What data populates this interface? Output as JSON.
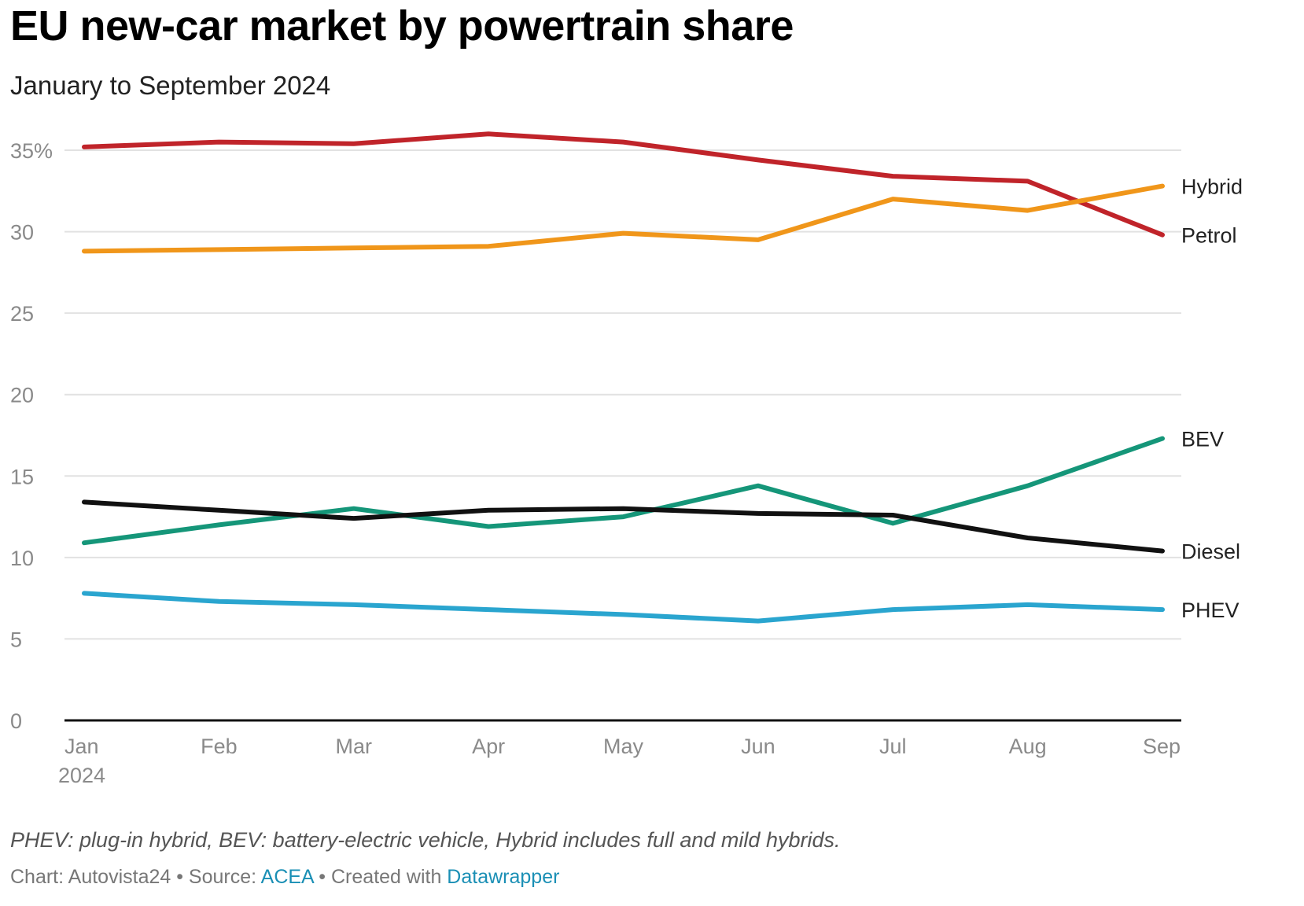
{
  "header": {
    "title": "EU new-car market by powertrain share",
    "subtitle": "January to September 2024"
  },
  "footer": {
    "notes": "PHEV: plug-in hybrid, BEV: battery-electric vehicle, Hybrid includes full and mild hybrids.",
    "credit_prefix": "Chart: Autovista24 • Source: ",
    "source_link": "ACEA",
    "created_prefix": " • Created with ",
    "tool_link": "Datawrapper"
  },
  "chart_data": {
    "type": "line",
    "title": "EU new-car market by powertrain share",
    "subtitle": "January to September 2024",
    "xlabel": "",
    "ylabel": "",
    "categories": [
      "Jan",
      "Feb",
      "Mar",
      "Apr",
      "May",
      "Jun",
      "Jul",
      "Aug",
      "Sep"
    ],
    "first_category_sublabel": "2024",
    "ylim": [
      0,
      35
    ],
    "y_ticks": [
      0,
      5,
      10,
      15,
      20,
      25,
      30,
      35
    ],
    "y_tick_labels": [
      "0",
      "5",
      "10",
      "15",
      "20",
      "25",
      "30",
      "35%"
    ],
    "grid": true,
    "legend": "direct labels at line ends (right)",
    "series": [
      {
        "name": "Petrol",
        "color": "#c0242a",
        "values": [
          35.2,
          35.5,
          35.4,
          36.0,
          35.5,
          34.4,
          33.4,
          33.1,
          29.8
        ]
      },
      {
        "name": "Hybrid",
        "color": "#f0961a",
        "values": [
          28.8,
          28.9,
          29.0,
          29.1,
          29.9,
          29.5,
          32.0,
          31.3,
          32.8
        ]
      },
      {
        "name": "BEV",
        "color": "#159679",
        "values": [
          10.9,
          12.0,
          13.0,
          11.9,
          12.5,
          14.4,
          12.1,
          14.4,
          17.3
        ]
      },
      {
        "name": "Diesel",
        "color": "#111111",
        "values": [
          13.4,
          12.9,
          12.4,
          12.9,
          13.0,
          12.7,
          12.6,
          11.2,
          10.4
        ]
      },
      {
        "name": "PHEV",
        "color": "#2aa5cf",
        "values": [
          7.8,
          7.3,
          7.1,
          6.8,
          6.5,
          6.1,
          6.8,
          7.1,
          6.8
        ]
      }
    ]
  }
}
